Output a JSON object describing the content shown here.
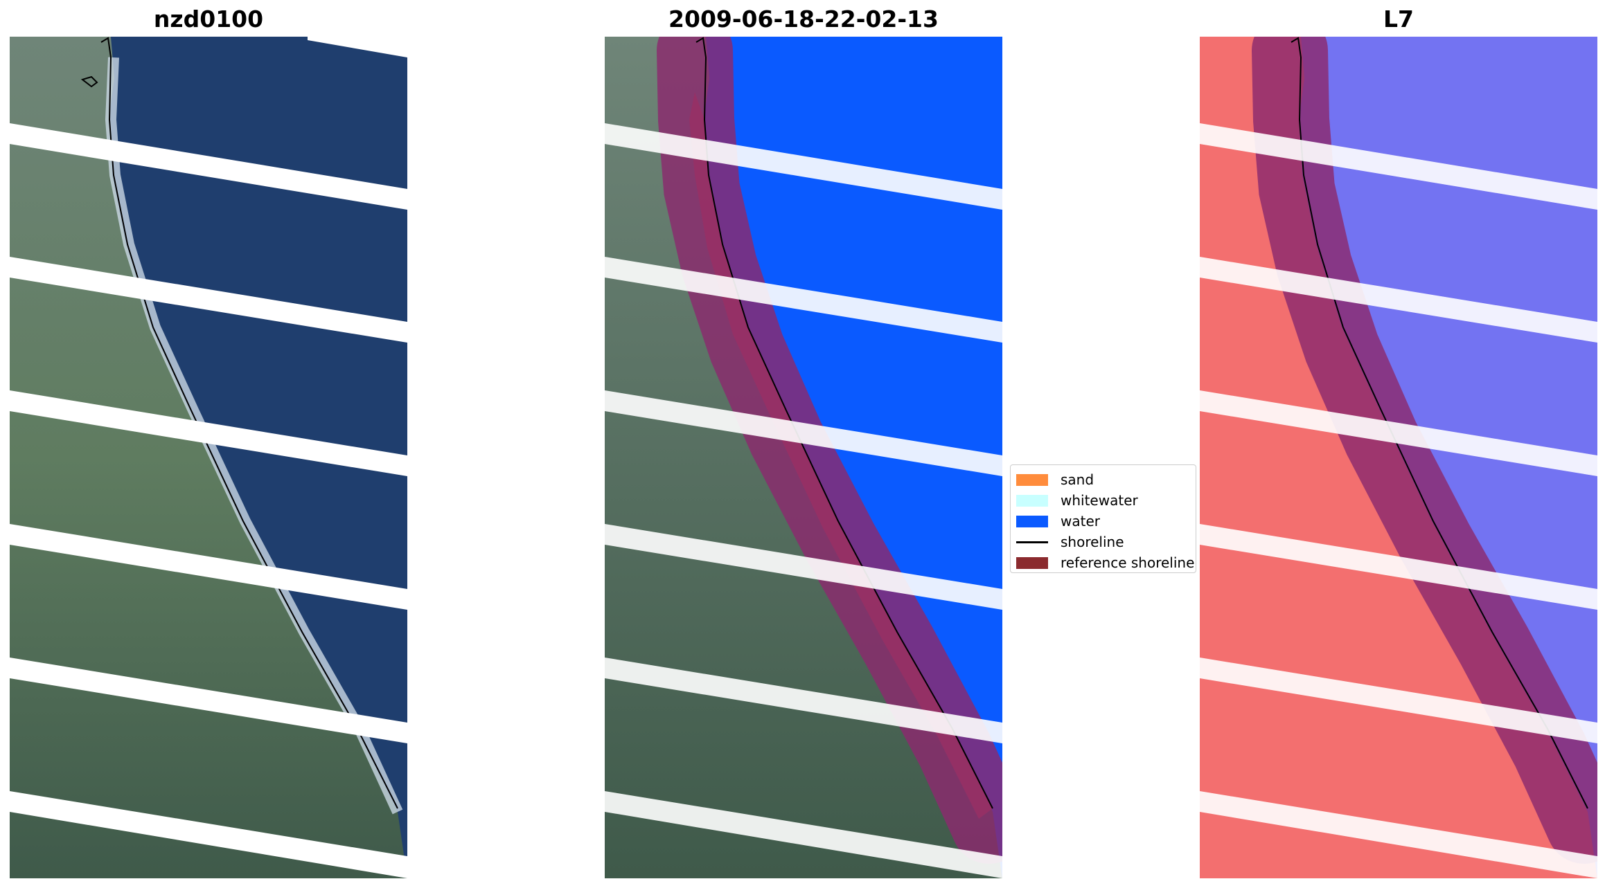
{
  "panels": [
    {
      "title": "nzd0100"
    },
    {
      "title": "2009-06-18-22-02-13"
    },
    {
      "title": "L7"
    }
  ],
  "legend": {
    "items": [
      {
        "label": "sand",
        "color": "#ff8c3c"
      },
      {
        "label": "whitewater",
        "color": "#c8ffff"
      },
      {
        "label": "water",
        "color": "#0a5aff"
      },
      {
        "label": "shoreline",
        "color": "#000000"
      },
      {
        "label": "reference shoreline",
        "color": "#8b2a2e"
      }
    ]
  },
  "colors": {
    "sea_rgb": "#1f3e6e",
    "land_rgb": "#5e7a62",
    "classified_water": "#0a5aff",
    "mndwi_land": "#f36f6f",
    "mndwi_water": "#7373f2",
    "reference_buffer": "#8b2a6e"
  }
}
